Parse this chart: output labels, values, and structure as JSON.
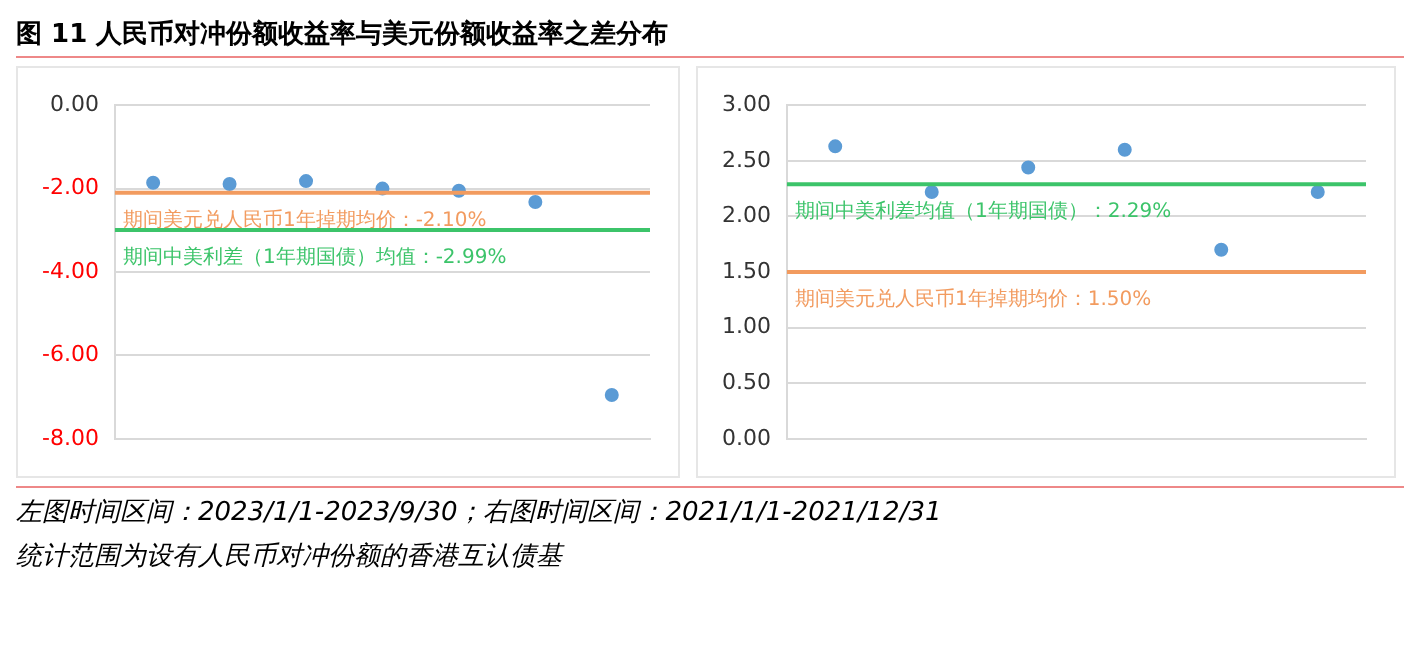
{
  "chart_data": [
    {
      "type": "scatter",
      "title": "图 11  人民币对冲份额收益率与美元份额收益率之差分布",
      "categories": [
        null,
        null,
        null,
        null,
        null,
        null,
        null
      ],
      "series": [
        {
          "color": "#5b9bd5",
          "values": [
            -1.86,
            -1.89,
            -1.82,
            -2.0,
            -2.05,
            -2.32,
            -6.95
          ]
        }
      ],
      "ylim": [
        -8,
        0
      ],
      "yticks": [
        {
          "value": 0,
          "label": "0.00"
        },
        {
          "value": -2,
          "label": "-2.00"
        },
        {
          "value": -4,
          "label": "-4.00"
        },
        {
          "value": -6,
          "label": "-6.00"
        },
        {
          "value": -8,
          "label": "-8.00"
        }
      ],
      "ref_lines": [
        {
          "axis": "y",
          "value": -2.1,
          "label": "期间美元兑人民币1年掉期均价：-2.10%",
          "color": "#f29b5f"
        },
        {
          "axis": "y",
          "value": -2.99,
          "label": "期间中美利差（1年期国债）均值：-2.99%",
          "color": "#3cc46a"
        }
      ],
      "grid": "y",
      "marker": "circle",
      "legend": false,
      "annotations": [
        "左图时间区间：2023/1/1-2023/9/30；右图时间区间：2021/1/1-2021/12/31",
        "统计范围为设有人民币对冲份额的香港互认债基"
      ]
    },
    {
      "type": "scatter",
      "categories": [
        null,
        null,
        null,
        null,
        null,
        null
      ],
      "series": [
        {
          "color": "#5b9bd5",
          "values": [
            2.63,
            2.22,
            2.44,
            2.6,
            1.7,
            2.22
          ]
        }
      ],
      "ylim": [
        0,
        3
      ],
      "yticks": [
        {
          "value": 0,
          "label": "0.00"
        },
        {
          "value": 0.5,
          "label": "0.50"
        },
        {
          "value": 1,
          "label": "1.00"
        },
        {
          "value": 1.5,
          "label": "1.50"
        },
        {
          "value": 2,
          "label": "2.00"
        },
        {
          "value": 2.5,
          "label": "2.50"
        },
        {
          "value": 3,
          "label": "3.00"
        }
      ],
      "ref_lines": [
        {
          "axis": "y",
          "value": 2.29,
          "label": "期间中美利差均值（1年期国债）：2.29%",
          "color": "#3cc46a"
        },
        {
          "axis": "y",
          "value": 1.5,
          "label": "期间美元兑人民币1年掉期均价：1.50%",
          "color": "#f29b5f"
        }
      ],
      "grid": "y",
      "marker": "circle",
      "legend": false
    }
  ]
}
